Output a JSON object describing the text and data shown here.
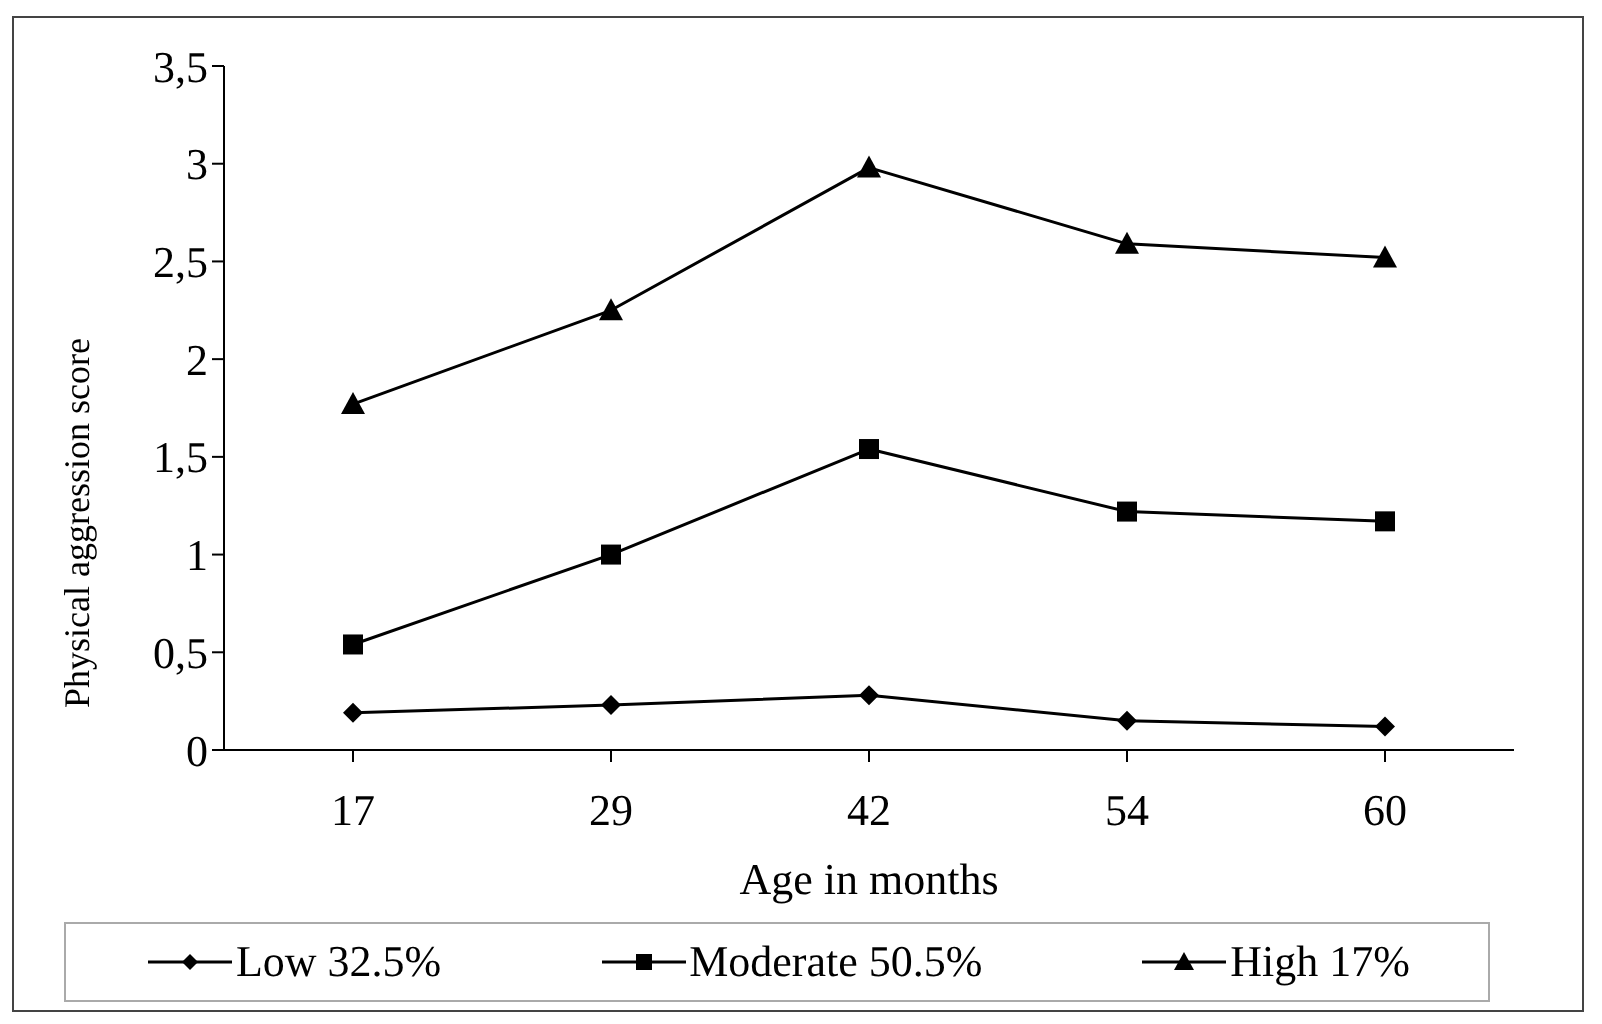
{
  "chart_data": {
    "type": "line",
    "xlabel": "Age in months",
    "ylabel": "Physical aggression score",
    "categories": [
      "17",
      "29",
      "42",
      "54",
      "60"
    ],
    "series": [
      {
        "name": "Low 32.5%",
        "color": "#000000",
        "marker": "diamond",
        "values": [
          0.19,
          0.23,
          0.28,
          0.15,
          0.12
        ]
      },
      {
        "name": "Moderate 50.5%",
        "color": "#000000",
        "marker": "square",
        "values": [
          0.54,
          1.0,
          1.54,
          1.22,
          1.17
        ]
      },
      {
        "name": "High 17%",
        "color": "#000000",
        "marker": "triangle",
        "values": [
          1.77,
          2.25,
          2.98,
          2.59,
          2.52
        ]
      }
    ],
    "ylim": [
      0,
      3.5
    ],
    "yticks": [
      0,
      {
        "value": 0.5,
        "label": "0,5"
      },
      1,
      {
        "value": 1.5,
        "label": "1,5"
      },
      2,
      {
        "value": 2.5,
        "label": "2,5"
      },
      3,
      {
        "value": 3.5,
        "label": "3,5"
      }
    ],
    "grid": false,
    "legend": "bottom",
    "line_style": "solid"
  }
}
